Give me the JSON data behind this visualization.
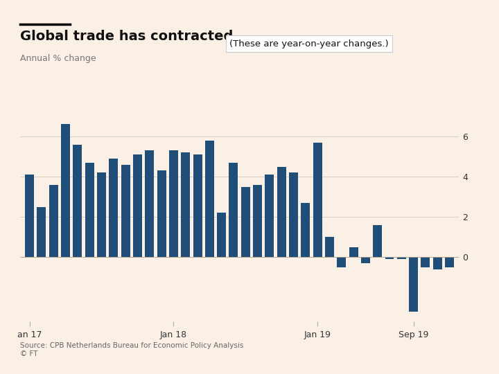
{
  "title": "Global trade has contracted",
  "ylabel": "Annual % change",
  "annotation": "(These are year-on-year changes.)",
  "source": "Source: CPB Netherlands Bureau for Economic Policy Analysis\n© FT",
  "background_color": "#faf0e6",
  "bar_color": "#1f4e79",
  "x_tick_labels": [
    "an 17",
    "Jan 18",
    "Jan 19",
    "Sep 19"
  ],
  "x_tick_positions": [
    0,
    12,
    24,
    32
  ],
  "ylim": [
    -3.2,
    7.2
  ],
  "yticks": [
    0,
    2,
    4,
    6
  ],
  "values": [
    4.1,
    2.5,
    3.6,
    6.6,
    5.6,
    4.7,
    4.2,
    4.9,
    4.6,
    5.1,
    5.3,
    4.3,
    5.3,
    5.2,
    5.1,
    5.8,
    2.2,
    4.7,
    3.5,
    3.6,
    4.1,
    4.5,
    4.2,
    2.7,
    5.7,
    1.0,
    -0.5,
    0.5,
    -0.3,
    1.6,
    -0.1,
    -0.1,
    -2.7,
    -0.5,
    -0.6,
    -0.5
  ],
  "figsize": [
    7.2,
    5.4
  ],
  "dpi": 100
}
